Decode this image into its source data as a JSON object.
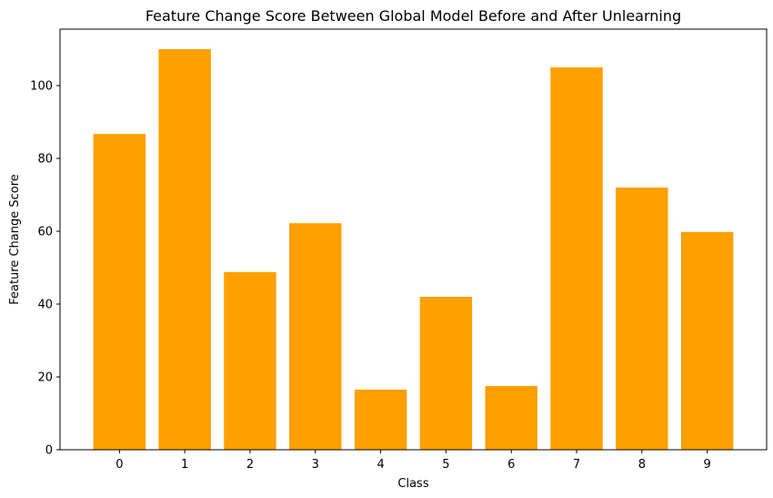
{
  "chart_data": {
    "type": "bar",
    "title": "Feature Change Score Between Global Model Before and After Unlearning",
    "xlabel": "Class",
    "ylabel": "Feature Change Score",
    "categories": [
      "0",
      "1",
      "2",
      "3",
      "4",
      "5",
      "6",
      "7",
      "8",
      "9"
    ],
    "values": [
      86.7,
      110.0,
      48.8,
      62.2,
      16.5,
      42.0,
      17.5,
      105.0,
      72.0,
      59.8
    ],
    "ylim": [
      0,
      115.5
    ],
    "yticks": [
      0,
      20,
      40,
      60,
      80,
      100
    ],
    "bar_color": "#ffa000",
    "grid": false,
    "legend": "none"
  }
}
